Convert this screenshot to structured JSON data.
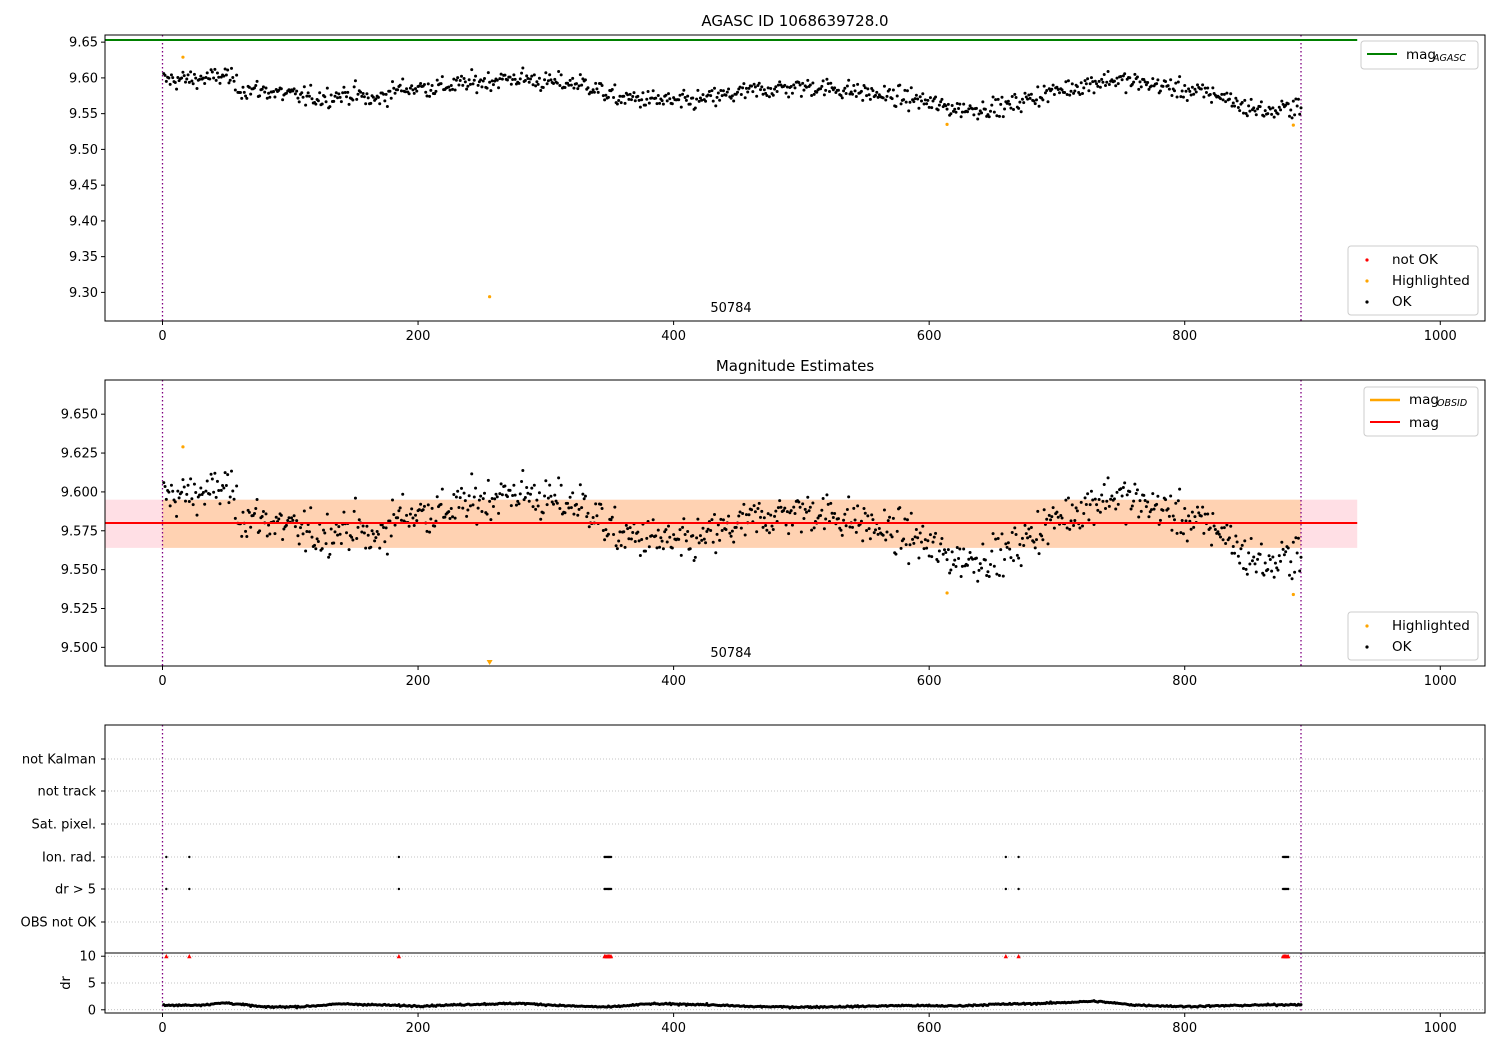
{
  "chart_data": [
    {
      "type": "scatter",
      "title": "AGASC ID 1068639728.0",
      "xlabel": "",
      "ylabel": "",
      "xlim": [
        -45,
        1035
      ],
      "ylim": [
        9.26,
        9.66
      ],
      "xticks": [
        0,
        200,
        400,
        600,
        800,
        1000
      ],
      "yticks": [
        9.3,
        9.35,
        9.4,
        9.45,
        9.5,
        9.55,
        9.6,
        9.65
      ],
      "yticklabels": [
        "9.30",
        "9.35",
        "9.40",
        "9.45",
        "9.50",
        "9.55",
        "9.60",
        "9.65"
      ],
      "grid": false,
      "reference_line": {
        "name": "mag",
        "sub": "AGASC",
        "y": 9.653,
        "color": "#008000",
        "x_range": [
          -45,
          935
        ]
      },
      "vlines": [
        0,
        891
      ],
      "obsid_label": {
        "text": "50784",
        "x": 445
      },
      "series": [
        {
          "name": "not OK",
          "color": "#ff0000",
          "points": []
        },
        {
          "name": "Highlighted",
          "color": "#ffa500",
          "points": [
            [
              16,
              9.629
            ],
            [
              256,
              9.294
            ],
            [
              614,
              9.535
            ],
            [
              885,
              9.534
            ]
          ]
        },
        {
          "name": "OK",
          "color": "#000000",
          "points": [],
          "trend": [
            [
              1,
              9.597
            ],
            [
              20,
              9.598
            ],
            [
              40,
              9.6
            ],
            [
              50,
              9.605
            ],
            [
              60,
              9.585
            ],
            [
              80,
              9.582
            ],
            [
              100,
              9.576
            ],
            [
              120,
              9.572
            ],
            [
              150,
              9.578
            ],
            [
              165,
              9.568
            ],
            [
              185,
              9.585
            ],
            [
              220,
              9.588
            ],
            [
              260,
              9.597
            ],
            [
              280,
              9.6
            ],
            [
              300,
              9.594
            ],
            [
              330,
              9.592
            ],
            [
              355,
              9.572
            ],
            [
              380,
              9.57
            ],
            [
              410,
              9.566
            ],
            [
              440,
              9.575
            ],
            [
              470,
              9.584
            ],
            [
              510,
              9.588
            ],
            [
              540,
              9.582
            ],
            [
              570,
              9.574
            ],
            [
              590,
              9.57
            ],
            [
              610,
              9.56
            ],
            [
              630,
              9.556
            ],
            [
              660,
              9.56
            ],
            [
              690,
              9.578
            ],
            [
              720,
              9.59
            ],
            [
              740,
              9.598
            ],
            [
              780,
              9.59
            ],
            [
              800,
              9.583
            ],
            [
              830,
              9.575
            ],
            [
              845,
              9.56
            ],
            [
              870,
              9.552
            ],
            [
              891,
              9.565
            ]
          ],
          "noise": 0.0115,
          "n": 891
        }
      ],
      "legend": {
        "location": "lower-right",
        "entries": [
          "not OK",
          "Highlighted",
          "OK"
        ]
      },
      "legend2": {
        "location": "upper-right",
        "entries": [
          "mag AGASC"
        ]
      }
    },
    {
      "type": "scatter",
      "title": "Magnitude Estimates",
      "xlabel": "",
      "ylabel": "",
      "xlim": [
        -45,
        1035
      ],
      "ylim": [
        9.488,
        9.672
      ],
      "xticks": [
        0,
        200,
        400,
        600,
        800,
        1000
      ],
      "yticks": [
        9.5,
        9.525,
        9.55,
        9.575,
        9.6,
        9.625,
        9.65
      ],
      "yticklabels": [
        "9.500",
        "9.525",
        "9.550",
        "9.575",
        "9.600",
        "9.625",
        "9.650"
      ],
      "grid": false,
      "mag_line": {
        "name": "mag",
        "y": 9.58,
        "color": "#ff0000"
      },
      "mag_band": {
        "low": 9.564,
        "high": 9.595,
        "x_range": [
          -45,
          935
        ]
      },
      "obsid_band": {
        "low": 9.564,
        "high": 9.595,
        "x_range": [
          0,
          891
        ]
      },
      "obsid_line": {
        "name": "mag",
        "sub": "OBSID",
        "color": "#ffa500"
      },
      "vlines": [
        0,
        891
      ],
      "obsid_label": {
        "text": "50784",
        "x": 445
      },
      "series": [
        {
          "name": "Highlighted",
          "color": "#ffa500",
          "points": [
            [
              16,
              9.629
            ],
            [
              614,
              9.535
            ],
            [
              885,
              9.534
            ]
          ],
          "off_scale_low": [
            [
              256,
              9.294
            ]
          ]
        },
        {
          "name": "OK",
          "color": "#000000",
          "reuse_from_panel": 0
        }
      ],
      "legend": {
        "location": "lower-right",
        "entries": [
          "Highlighted",
          "OK"
        ]
      },
      "legend2": {
        "location": "upper-right",
        "entries": [
          "mag OBSID",
          "mag"
        ]
      }
    },
    {
      "type": "scatter",
      "title": "",
      "categories": [
        "not Kalman",
        "not track",
        "Sat. pixel.",
        "Ion. rad.",
        "dr > 5",
        "OBS not OK"
      ],
      "xlim": [
        -45,
        1035
      ],
      "xticks": [
        0,
        200,
        400,
        600,
        800,
        1000
      ],
      "vlines": [
        0,
        891
      ],
      "grid": true,
      "flags": {
        "Ion. rad.": [
          3,
          21,
          185,
          346,
          347,
          348,
          349,
          350,
          351,
          660,
          670,
          877,
          878,
          879,
          880,
          881
        ],
        "dr > 5": [
          3,
          21,
          185,
          346,
          347,
          348,
          349,
          350,
          351,
          660,
          670,
          877,
          878,
          879,
          880,
          881
        ]
      },
      "dr_panel": {
        "ylabel": "dr",
        "ylim": [
          -0.6,
          10.6
        ],
        "yticks": [
          0,
          5,
          10
        ],
        "clip_value": 10,
        "clipped_points": [
          3,
          21,
          185,
          346,
          347,
          348,
          349,
          350,
          351,
          660,
          670,
          877,
          878,
          879,
          880,
          881
        ],
        "baseline": [
          [
            0,
            0.8
          ],
          [
            30,
            0.9
          ],
          [
            50,
            1.3
          ],
          [
            80,
            0.5
          ],
          [
            110,
            0.6
          ],
          [
            140,
            1.1
          ],
          [
            170,
            0.9
          ],
          [
            200,
            0.7
          ],
          [
            240,
            1.0
          ],
          [
            280,
            1.2
          ],
          [
            320,
            0.7
          ],
          [
            350,
            0.5
          ],
          [
            380,
            1.1
          ],
          [
            420,
            1.0
          ],
          [
            460,
            0.6
          ],
          [
            500,
            0.5
          ],
          [
            540,
            0.6
          ],
          [
            580,
            0.8
          ],
          [
            620,
            0.7
          ],
          [
            650,
            1.0
          ],
          [
            690,
            1.2
          ],
          [
            730,
            1.6
          ],
          [
            760,
            0.9
          ],
          [
            800,
            0.6
          ],
          [
            840,
            0.8
          ],
          [
            891,
            1.0
          ]
        ]
      }
    }
  ]
}
